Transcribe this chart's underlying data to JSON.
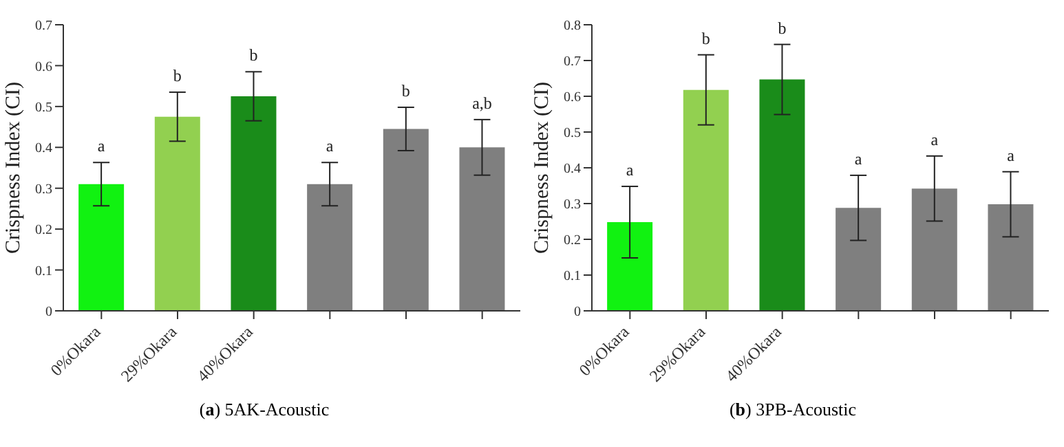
{
  "chart_data": [
    {
      "type": "bar",
      "title": "(a) 5AK-Acoustic",
      "ylabel": "Crispness Index (CI)",
      "categories": [
        "0%Okara",
        "29%Okara",
        "40%Okara",
        null,
        null,
        null
      ],
      "values": [
        0.31,
        0.475,
        0.525,
        0.31,
        0.445,
        0.4
      ],
      "errors": [
        0.053,
        0.06,
        0.06,
        0.053,
        0.053,
        0.068
      ],
      "colors": [
        "#11f211",
        "#92d050",
        "#1a8c1a",
        "#7f7f7f",
        "#7f7f7f",
        "#7f7f7f"
      ],
      "ylim": [
        0,
        0.7
      ],
      "yticks": [
        0,
        0.1,
        0.2,
        0.3,
        0.4,
        0.5,
        0.6,
        0.7
      ],
      "grid": false,
      "annotations": [
        "a",
        "b",
        "b",
        "a",
        "b",
        "a,b"
      ]
    },
    {
      "type": "bar",
      "title": "(b) 3PB-Acoustic",
      "ylabel": "Crispness Index (CI)",
      "categories": [
        "0%Okara",
        "29%Okara",
        "40%Okara",
        null,
        null,
        null
      ],
      "values": [
        0.248,
        0.618,
        0.647,
        0.288,
        0.342,
        0.298
      ],
      "errors": [
        0.1,
        0.098,
        0.098,
        0.091,
        0.091,
        0.091
      ],
      "colors": [
        "#11f211",
        "#92d050",
        "#1a8c1a",
        "#7f7f7f",
        "#7f7f7f",
        "#7f7f7f"
      ],
      "ylim": [
        0,
        0.8
      ],
      "yticks": [
        0,
        0.1,
        0.2,
        0.3,
        0.4,
        0.5,
        0.6,
        0.7,
        0.8
      ],
      "grid": false,
      "annotations": [
        "a",
        "b",
        "b",
        "a",
        "a",
        "a"
      ]
    }
  ]
}
